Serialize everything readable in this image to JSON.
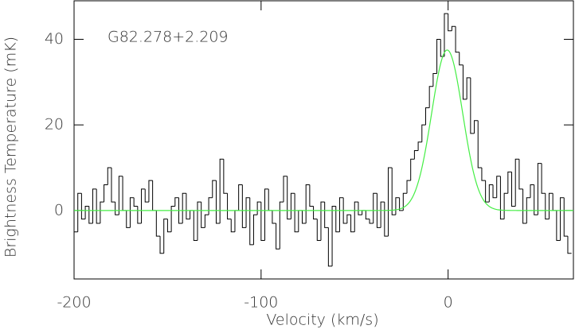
{
  "chart_data": {
    "type": "step",
    "annotation": "G82.278+2.209",
    "xlabel": "Velocity (km/s)",
    "ylabel": "Brightness Temperature (mK)",
    "xlim": [
      -200,
      67
    ],
    "ylim": [
      -16,
      49
    ],
    "xticks": [
      -200,
      -100,
      0
    ],
    "yticks": [
      0,
      20,
      40
    ],
    "color": "#000000",
    "x": [
      -199,
      -197,
      -195,
      -193,
      -191,
      -189,
      -187,
      -185,
      -183,
      -181,
      -179,
      -177,
      -175,
      -173,
      -171,
      -169,
      -167,
      -165,
      -163,
      -161,
      -159,
      -157,
      -155,
      -153,
      -151,
      -149,
      -147,
      -145,
      -143,
      -141,
      -139,
      -137,
      -135,
      -133,
      -131,
      -129,
      -127,
      -125,
      -123,
      -121,
      -119,
      -117,
      -115,
      -113,
      -111,
      -109,
      -107,
      -105,
      -103,
      -101,
      -99,
      -97,
      -95,
      -93,
      -91,
      -89,
      -87,
      -85,
      -83,
      -81,
      -79,
      -77,
      -75,
      -73,
      -71,
      -69,
      -67,
      -65,
      -63,
      -61,
      -59,
      -57,
      -55,
      -53,
      -51,
      -49,
      -47,
      -45,
      -43,
      -41,
      -39,
      -37,
      -35,
      -33,
      -31,
      -29,
      -27,
      -25,
      -23,
      -21,
      -19,
      -17,
      -15,
      -13,
      -11,
      -9,
      -7,
      -5,
      -3,
      -1,
      1,
      3,
      5,
      7,
      9,
      11,
      13,
      15,
      17,
      19,
      21,
      23,
      25,
      27,
      29,
      31,
      33,
      35,
      37,
      39,
      41,
      43,
      45,
      47,
      49,
      51,
      53,
      55,
      57,
      59,
      61,
      63,
      65
    ],
    "values": [
      -5,
      4,
      -2,
      1,
      -3,
      5,
      -3,
      2,
      6,
      10,
      2,
      -1,
      8,
      0,
      -4,
      3,
      1,
      -3,
      5,
      2,
      7,
      0,
      -6,
      -10,
      -2,
      -5,
      1,
      3,
      -3,
      4,
      -2,
      0,
      -7,
      2,
      -4,
      -1,
      3,
      7,
      -3,
      12,
      4,
      -2,
      -5,
      0,
      6,
      -4,
      3,
      -8,
      -1,
      2,
      -7,
      5,
      0,
      -3,
      -9,
      2,
      8,
      -2,
      4,
      -5,
      0,
      -3,
      6,
      1,
      -2,
      -7,
      2,
      -4,
      -13,
      1,
      -5,
      3,
      -3,
      -1,
      -5,
      2,
      -1,
      0,
      -2,
      -3,
      4,
      -4,
      2,
      -6,
      10,
      -1,
      3,
      0,
      4,
      7,
      12,
      14,
      16,
      20,
      24,
      29,
      32,
      40,
      36,
      46,
      42,
      43,
      37,
      34,
      26,
      31,
      18,
      21,
      10,
      7,
      2,
      6,
      3,
      8,
      -2,
      4,
      9,
      1,
      12,
      5,
      -3,
      3,
      6,
      -1,
      11,
      4,
      -2,
      4,
      0,
      -7,
      3,
      -6,
      -10
    ],
    "channel_width": 2,
    "fit": {
      "amplitude": 37.5,
      "center": -0.5,
      "sigma": 8.3,
      "color": "#44ee44"
    }
  }
}
